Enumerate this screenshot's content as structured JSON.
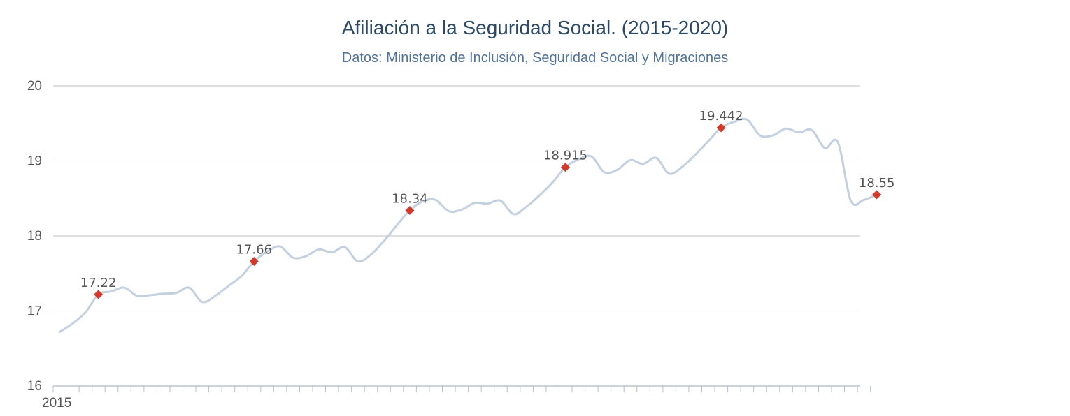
{
  "chart_data": {
    "type": "line",
    "title": "Afiliación a la Seguridad Social. (2015-2020)",
    "subtitle": "Datos: Ministerio de Inclusión, Seguridad Social y Migraciones",
    "xlabel": "",
    "ylabel": "",
    "x_tick_labels": [
      "2015"
    ],
    "y_ticks": [
      16,
      17,
      18,
      19,
      20
    ],
    "ylim": [
      16,
      20
    ],
    "grid": true,
    "legend": "none",
    "colors": {
      "line": "#c3d0df",
      "marker": "#d23a2c",
      "grid": "#bfbfbf",
      "title": "#2c4a66",
      "subtitle": "#50739b"
    },
    "series": [
      {
        "values": [
          16.72,
          16.83,
          16.98,
          17.22,
          17.26,
          17.31,
          17.2,
          17.21,
          17.23,
          17.24,
          17.31,
          17.12,
          17.2,
          17.33,
          17.46,
          17.66,
          17.79,
          17.86,
          17.71,
          17.73,
          17.82,
          17.78,
          17.85,
          17.66,
          17.75,
          17.93,
          18.14,
          18.34,
          18.46,
          18.48,
          18.33,
          18.35,
          18.44,
          18.43,
          18.47,
          18.29,
          18.39,
          18.54,
          18.71,
          18.915,
          19.02,
          19.06,
          18.85,
          18.88,
          19.01,
          18.96,
          19.04,
          18.83,
          18.92,
          19.08,
          19.26,
          19.442,
          19.52,
          19.55,
          19.34,
          19.34,
          19.43,
          19.38,
          19.41,
          19.17,
          19.25,
          18.47,
          18.48,
          18.55
        ]
      }
    ],
    "data_labels": [
      {
        "index": 3,
        "label": "17.22"
      },
      {
        "index": 15,
        "label": "17.66"
      },
      {
        "index": 27,
        "label": "18.34"
      },
      {
        "index": 39,
        "label": "18.915"
      },
      {
        "index": 51,
        "label": "19.442"
      },
      {
        "index": 63,
        "label": "18.55"
      }
    ]
  }
}
